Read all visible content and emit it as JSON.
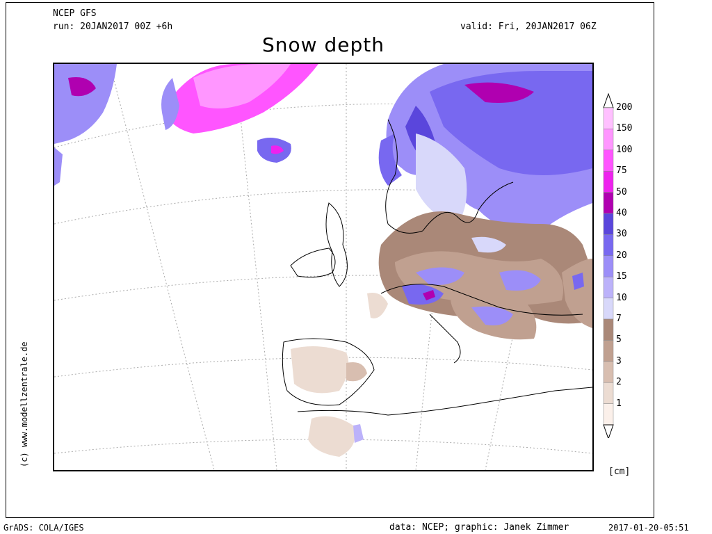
{
  "header": {
    "model": "NCEP GFS",
    "run": "run: 20JAN2017 00Z +6h",
    "valid": "valid: Fri, 20JAN2017 06Z",
    "title": "Snow depth"
  },
  "side_text": "(c) www.modellzentrale.de",
  "legend": {
    "unit": "[cm]",
    "levels": [
      {
        "label": "200",
        "color": "#ffc0ff"
      },
      {
        "label": "150",
        "color": "#ff96ff"
      },
      {
        "label": "100",
        "color": "#ff55ff"
      },
      {
        "label": "75",
        "color": "#ee22ee"
      },
      {
        "label": "50",
        "color": "#b000b0"
      },
      {
        "label": "40",
        "color": "#5a46dc"
      },
      {
        "label": "30",
        "color": "#7868f0"
      },
      {
        "label": "20",
        "color": "#9c8ef8"
      },
      {
        "label": "15",
        "color": "#bcb2fa"
      },
      {
        "label": "10",
        "color": "#d8d8fa"
      },
      {
        "label": "7",
        "color": "#aa8878"
      },
      {
        "label": "5",
        "color": "#c0a090"
      },
      {
        "label": "3",
        "color": "#d8beb0"
      },
      {
        "label": "2",
        "color": "#ecdcd2"
      },
      {
        "label": "1",
        "color": "#fbf0ea"
      }
    ]
  },
  "footer": {
    "left": "GrADS: COLA/IGES",
    "credit": "data: NCEP; graphic: Janek Zimmer",
    "timestamp": "2017-01-20-05:51"
  }
}
